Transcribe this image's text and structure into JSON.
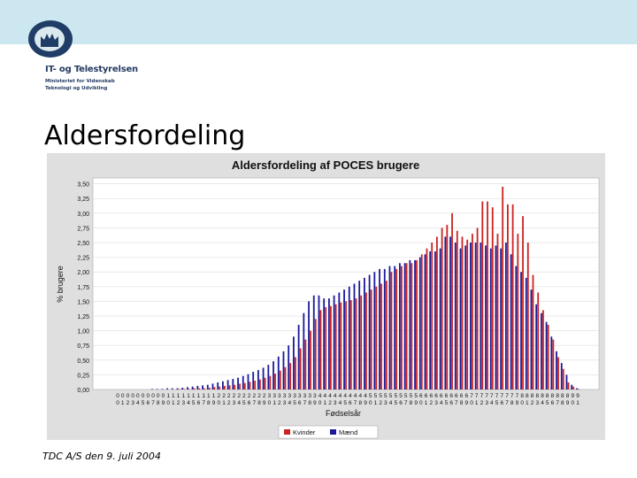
{
  "header": {
    "org_name": "IT- og Telestyrelsen",
    "org_sub1": "Ministeriet for Videnskab",
    "org_sub2": "Teknologi og Udvikling",
    "colors": {
      "topbar": "#cde7f1",
      "logo_ring": "#1f3d66",
      "logo_inner": "#ffffff"
    }
  },
  "slide": {
    "title": "Aldersfordeling",
    "footer": "TDC A/S den 9. juli 2004"
  },
  "chart_data": {
    "type": "bar",
    "title": "Aldersfordeling af POCES brugere",
    "xlabel": "Fødselsår",
    "ylabel": "% brugere",
    "ylim": [
      0,
      3.6
    ],
    "yticks": [
      "0,00",
      "0,25",
      "0,50",
      "0,75",
      "1,00",
      "1,25",
      "1,50",
      "1,75",
      "2,00",
      "2,25",
      "2,50",
      "2,75",
      "3,00",
      "3,25",
      "3,50"
    ],
    "categories": [
      "1900",
      "1901",
      "1902",
      "1903",
      "1904",
      "1905",
      "1906",
      "1907",
      "1908",
      "1909",
      "1910",
      "1911",
      "1912",
      "1913",
      "1914",
      "1915",
      "1916",
      "1917",
      "1918",
      "1919",
      "1920",
      "1921",
      "1922",
      "1923",
      "1924",
      "1925",
      "1926",
      "1927",
      "1928",
      "1929",
      "1930",
      "1931",
      "1932",
      "1933",
      "1934",
      "1935",
      "1936",
      "1937",
      "1938",
      "1939",
      "1940",
      "1941",
      "1942",
      "1943",
      "1944",
      "1945",
      "1946",
      "1947",
      "1948",
      "1949",
      "1950",
      "1951",
      "1952",
      "1953",
      "1954",
      "1955",
      "1956",
      "1957",
      "1958",
      "1959",
      "1960",
      "1961",
      "1962",
      "1963",
      "1964",
      "1965",
      "1966",
      "1967",
      "1968",
      "1969",
      "1970",
      "1971",
      "1972",
      "1973",
      "1974",
      "1975",
      "1976",
      "1977",
      "1978",
      "1979",
      "1980",
      "1981",
      "1982",
      "1983",
      "1984",
      "1985",
      "1986",
      "1987",
      "1988",
      "1989",
      "1990",
      "1991"
    ],
    "series": [
      {
        "name": "Kvinder",
        "color": "#cc2222",
        "values": [
          0,
          0,
          0,
          0,
          0,
          0,
          0,
          0,
          0,
          0,
          0,
          0,
          0.01,
          0.01,
          0.01,
          0.02,
          0.02,
          0.02,
          0.03,
          0.04,
          0.05,
          0.06,
          0.07,
          0.08,
          0.1,
          0.11,
          0.13,
          0.15,
          0.17,
          0.2,
          0.23,
          0.27,
          0.32,
          0.38,
          0.45,
          0.55,
          0.7,
          0.85,
          1.0,
          1.2,
          1.35,
          1.4,
          1.42,
          1.45,
          1.48,
          1.5,
          1.52,
          1.55,
          1.6,
          1.65,
          1.7,
          1.75,
          1.8,
          1.85,
          2.0,
          2.05,
          2.1,
          2.15,
          2.15,
          2.2,
          2.3,
          2.4,
          2.5,
          2.6,
          2.75,
          2.8,
          3.0,
          2.7,
          2.6,
          2.55,
          2.65,
          2.75,
          3.2,
          3.2,
          3.1,
          2.65,
          3.45,
          3.15,
          3.15,
          2.65,
          2.95,
          2.5,
          1.95,
          1.65,
          1.35,
          1.1,
          0.85,
          0.55,
          0.35,
          0.12,
          0.05,
          0.01
        ]
      },
      {
        "name": "Mænd",
        "color": "#1a1a99",
        "values": [
          0,
          0,
          0,
          0,
          0,
          0,
          0,
          0.01,
          0.01,
          0.01,
          0.02,
          0.02,
          0.02,
          0.03,
          0.04,
          0.05,
          0.06,
          0.07,
          0.08,
          0.1,
          0.12,
          0.14,
          0.16,
          0.18,
          0.2,
          0.23,
          0.26,
          0.3,
          0.33,
          0.37,
          0.42,
          0.48,
          0.56,
          0.65,
          0.75,
          0.9,
          1.1,
          1.3,
          1.5,
          1.6,
          1.6,
          1.55,
          1.55,
          1.6,
          1.65,
          1.7,
          1.75,
          1.8,
          1.85,
          1.9,
          1.95,
          2.0,
          2.05,
          2.05,
          2.1,
          2.1,
          2.15,
          2.15,
          2.2,
          2.2,
          2.25,
          2.3,
          2.35,
          2.35,
          2.4,
          2.6,
          2.6,
          2.5,
          2.4,
          2.45,
          2.5,
          2.5,
          2.5,
          2.45,
          2.4,
          2.45,
          2.4,
          2.5,
          2.3,
          2.1,
          2.0,
          1.9,
          1.7,
          1.45,
          1.3,
          1.15,
          0.9,
          0.65,
          0.45,
          0.25,
          0.08,
          0.02
        ]
      }
    ],
    "legend": {
      "position": "bottom"
    }
  }
}
